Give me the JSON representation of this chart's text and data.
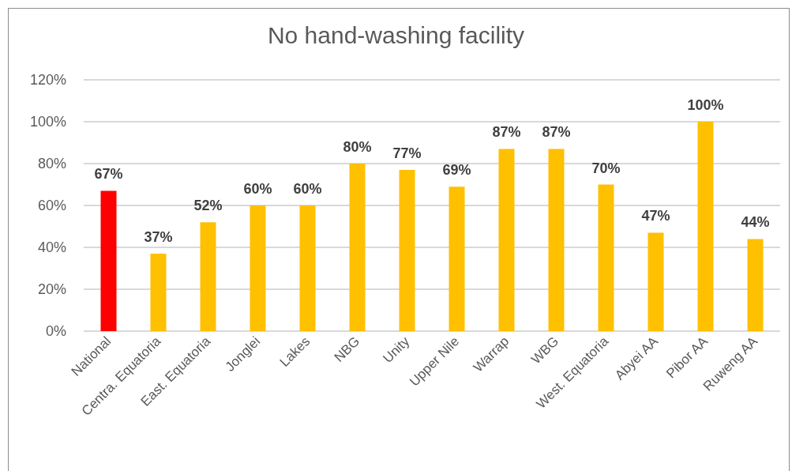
{
  "chart_data": {
    "type": "bar",
    "title": "No hand-washing facility",
    "categories": [
      "National",
      "Centra. Equatoria",
      "East. Equatoria",
      "Jonglei",
      "Lakes",
      "NBG",
      "Unity",
      "Upper Nile",
      "Warrap",
      "WBG",
      "West. Equatoria",
      "Abyei AA",
      "Pibor AA",
      "Ruweng AA"
    ],
    "values": [
      67,
      37,
      52,
      60,
      60,
      80,
      77,
      69,
      87,
      87,
      70,
      47,
      100,
      44
    ],
    "colors": [
      "#ff0000",
      "#ffc000",
      "#ffc000",
      "#ffc000",
      "#ffc000",
      "#ffc000",
      "#ffc000",
      "#ffc000",
      "#ffc000",
      "#ffc000",
      "#ffc000",
      "#ffc000",
      "#ffc000",
      "#ffc000"
    ],
    "value_labels": [
      "67%",
      "37%",
      "52%",
      "60%",
      "60%",
      "80%",
      "77%",
      "69%",
      "87%",
      "87%",
      "70%",
      "47%",
      "100%",
      "44%"
    ],
    "ylim": [
      0,
      120
    ],
    "yticks": [
      {
        "value": 0,
        "label": "0%"
      },
      {
        "value": 20,
        "label": "20%"
      },
      {
        "value": 40,
        "label": "40%"
      },
      {
        "value": 60,
        "label": "60%"
      },
      {
        "value": 80,
        "label": "80%"
      },
      {
        "value": 100,
        "label": "100%"
      },
      {
        "value": 120,
        "label": "120%"
      }
    ],
    "grid": "y"
  }
}
